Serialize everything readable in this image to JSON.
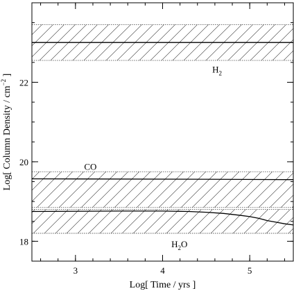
{
  "chart_data": {
    "type": "area",
    "title": "",
    "xlabel": "Log[ Time / yrs ]",
    "ylabel_main": "Log[ Column Density / cm",
    "ylabel_sup": "−2",
    "ylabel_end": " ]",
    "xlim": [
      2.5,
      5.5
    ],
    "ylim": [
      17.5,
      24.0
    ],
    "xticks": [
      3,
      4,
      5
    ],
    "xtick_labels": [
      "3",
      "4",
      "5"
    ],
    "yticks": [
      18,
      20,
      22
    ],
    "ytick_labels": [
      "18",
      "20",
      "22"
    ],
    "grid": false,
    "bands": [
      {
        "name": "H2",
        "label_main": "H",
        "label_sub": "2",
        "lower": 22.55,
        "upper": 23.45
      },
      {
        "name": "CO",
        "label_main": "CO",
        "label_sub": "",
        "lower": 18.85,
        "upper": 19.75
      },
      {
        "name": "H2O",
        "label_main": "H",
        "label_sub": "2",
        "label_end": "O",
        "lower": 18.2,
        "upper": 18.8
      }
    ],
    "series": [
      {
        "name": "H2",
        "x": [
          2.5,
          5.5
        ],
        "y": [
          23.0,
          23.0
        ]
      },
      {
        "name": "CO",
        "x": [
          2.5,
          4.5,
          5.5
        ],
        "y": [
          19.57,
          19.56,
          19.55
        ]
      },
      {
        "name": "H2O",
        "x": [
          2.5,
          3.5,
          4.0,
          4.3,
          4.5,
          4.7,
          4.9,
          5.0,
          5.1,
          5.2,
          5.3,
          5.4,
          5.5
        ],
        "y": [
          18.75,
          18.76,
          18.76,
          18.75,
          18.73,
          18.7,
          18.65,
          18.62,
          18.58,
          18.52,
          18.48,
          18.44,
          18.41
        ]
      }
    ]
  }
}
